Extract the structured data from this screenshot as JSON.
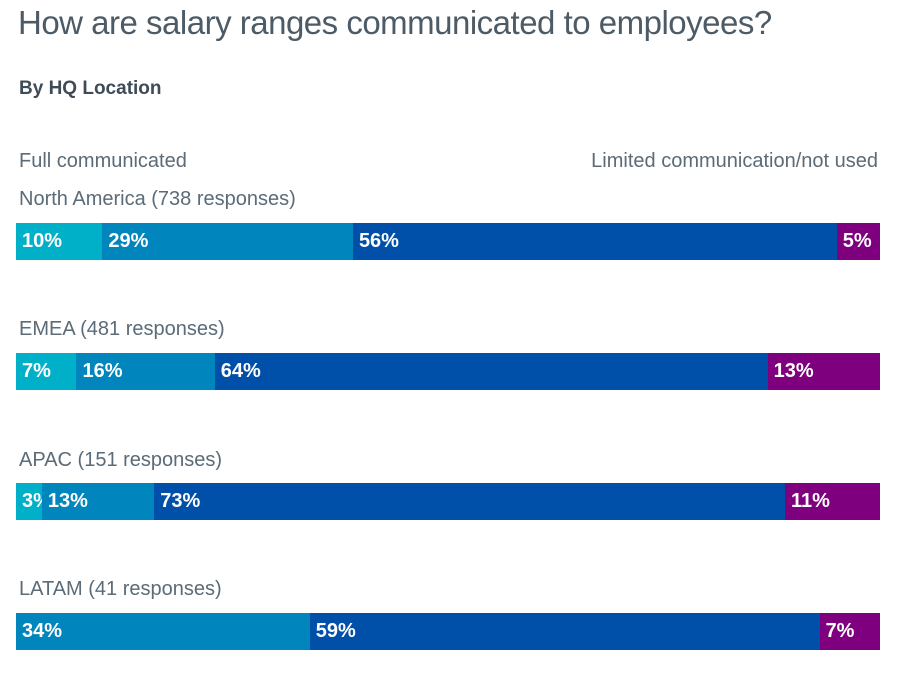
{
  "chart_data": {
    "type": "bar",
    "orientation": "horizontal",
    "stacked": true,
    "title": "How are salary ranges communicated to employees?",
    "subtitle": "By HQ Location",
    "scale_labels": {
      "left": "Full communicated",
      "right": "Limited communication/not used"
    },
    "colors": [
      "#00b0c8",
      "#0085bd",
      "#004fa8",
      "#7f007f"
    ],
    "rows": [
      {
        "label": "North America (738 responses)",
        "values": [
          10,
          29,
          56,
          5
        ]
      },
      {
        "label": "EMEA (481 responses)",
        "values": [
          7,
          16,
          64,
          13
        ]
      },
      {
        "label": "APAC (151 responses)",
        "values": [
          3,
          13,
          73,
          11
        ]
      },
      {
        "label": "LATAM (41 responses)",
        "values": [
          null,
          34,
          59,
          7
        ]
      }
    ]
  }
}
